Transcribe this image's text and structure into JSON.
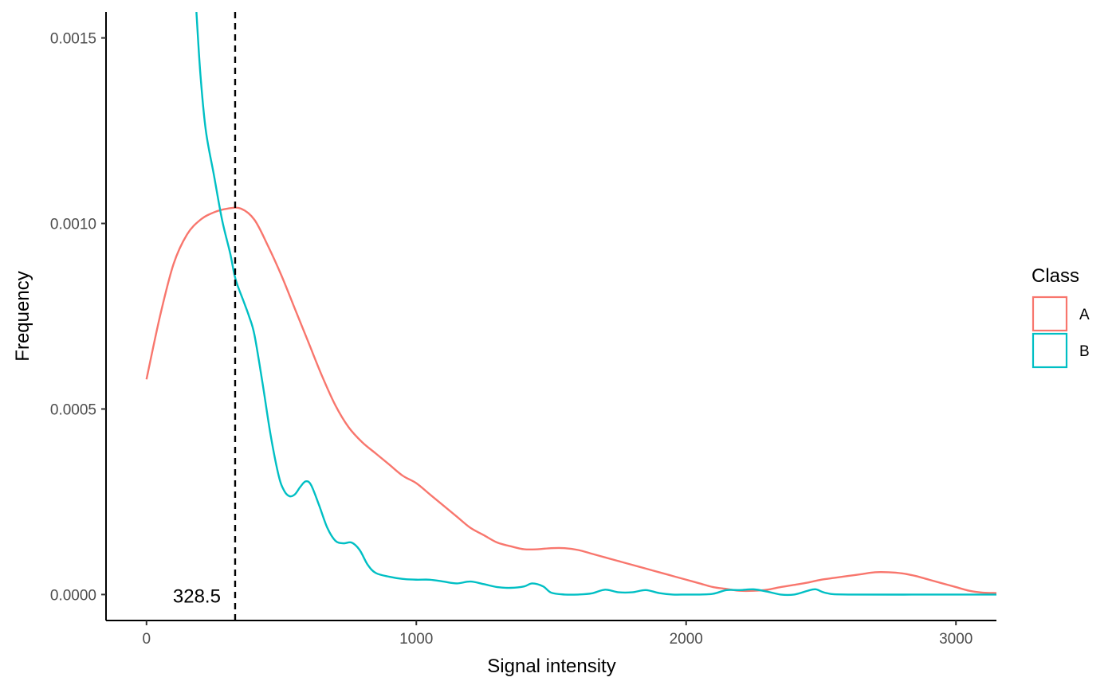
{
  "chart_data": {
    "type": "line",
    "title": "",
    "xlabel": "Signal intensity",
    "ylabel": "Frequency",
    "xlim": [
      -150,
      3150
    ],
    "ylim": [
      -7e-05,
      0.00157
    ],
    "x_ticks": [
      0,
      1000,
      2000,
      3000
    ],
    "x_tick_labels": [
      "0",
      "1000",
      "2000",
      "3000"
    ],
    "y_ticks": [
      0,
      0.0005,
      0.001,
      0.0015
    ],
    "y_tick_labels": [
      "0.0000",
      "0.0005",
      "0.0010",
      "0.0015"
    ],
    "grid": false,
    "legend": {
      "title": "Class",
      "placement": "right"
    },
    "vline": {
      "x": 328.5,
      "label": "328.5",
      "style": "dashed",
      "color": "#000000"
    },
    "series": [
      {
        "name": "A",
        "color": "#F8766D",
        "points": [
          [
            0,
            0.00058
          ],
          [
            50,
            0.00075
          ],
          [
            100,
            0.00089
          ],
          [
            150,
            0.00097
          ],
          [
            200,
            0.00101
          ],
          [
            250,
            0.00103
          ],
          [
            300,
            0.00104
          ],
          [
            350,
            0.00104
          ],
          [
            400,
            0.00101
          ],
          [
            450,
            0.00094
          ],
          [
            500,
            0.00086
          ],
          [
            550,
            0.00077
          ],
          [
            600,
            0.00068
          ],
          [
            650,
            0.00059
          ],
          [
            700,
            0.00051
          ],
          [
            750,
            0.00045
          ],
          [
            800,
            0.00041
          ],
          [
            850,
            0.00038
          ],
          [
            900,
            0.00035
          ],
          [
            950,
            0.00032
          ],
          [
            1000,
            0.0003
          ],
          [
            1050,
            0.00027
          ],
          [
            1100,
            0.00024
          ],
          [
            1150,
            0.00021
          ],
          [
            1200,
            0.00018
          ],
          [
            1250,
            0.00016
          ],
          [
            1300,
            0.00014
          ],
          [
            1350,
            0.00013
          ],
          [
            1400,
            0.000122
          ],
          [
            1450,
            0.000122
          ],
          [
            1500,
            0.000125
          ],
          [
            1550,
            0.000125
          ],
          [
            1600,
            0.00012
          ],
          [
            1650,
            0.00011
          ],
          [
            1700,
            0.0001
          ],
          [
            1750,
            9e-05
          ],
          [
            1800,
            8e-05
          ],
          [
            1850,
            7e-05
          ],
          [
            1900,
            6e-05
          ],
          [
            1950,
            5e-05
          ],
          [
            2000,
            4e-05
          ],
          [
            2050,
            3e-05
          ],
          [
            2100,
            2e-05
          ],
          [
            2150,
            1.5e-05
          ],
          [
            2200,
            1e-05
          ],
          [
            2250,
            1e-05
          ],
          [
            2300,
            1.3e-05
          ],
          [
            2350,
            2e-05
          ],
          [
            2400,
            2.6e-05
          ],
          [
            2450,
            3.2e-05
          ],
          [
            2500,
            4e-05
          ],
          [
            2550,
            4.5e-05
          ],
          [
            2600,
            5e-05
          ],
          [
            2650,
            5.5e-05
          ],
          [
            2700,
            6e-05
          ],
          [
            2750,
            6e-05
          ],
          [
            2800,
            5.7e-05
          ],
          [
            2850,
            5e-05
          ],
          [
            2900,
            4e-05
          ],
          [
            2950,
            3e-05
          ],
          [
            3000,
            2e-05
          ],
          [
            3050,
            1e-05
          ],
          [
            3100,
            5e-06
          ],
          [
            3150,
            4e-06
          ]
        ]
      },
      {
        "name": "B",
        "color": "#00BFC4",
        "points": [
          [
            185,
            0.00157
          ],
          [
            200,
            0.0014
          ],
          [
            220,
            0.00125
          ],
          [
            250,
            0.00113
          ],
          [
            280,
            0.00101
          ],
          [
            310,
            0.00092
          ],
          [
            330,
            0.00085
          ],
          [
            360,
            0.00079
          ],
          [
            380,
            0.00075
          ],
          [
            400,
            0.0007
          ],
          [
            430,
            0.00057
          ],
          [
            460,
            0.00043
          ],
          [
            490,
            0.00032
          ],
          [
            510,
            0.00028
          ],
          [
            530,
            0.000265
          ],
          [
            550,
            0.00027
          ],
          [
            570,
            0.00029
          ],
          [
            590,
            0.000305
          ],
          [
            610,
            0.000295
          ],
          [
            640,
            0.00024
          ],
          [
            670,
            0.00018
          ],
          [
            700,
            0.000145
          ],
          [
            730,
            0.000138
          ],
          [
            760,
            0.00014
          ],
          [
            790,
            0.00012
          ],
          [
            820,
            8e-05
          ],
          [
            850,
            5.8e-05
          ],
          [
            900,
            4.8e-05
          ],
          [
            950,
            4.2e-05
          ],
          [
            1000,
            4e-05
          ],
          [
            1050,
            4e-05
          ],
          [
            1100,
            3.5e-05
          ],
          [
            1150,
            3e-05
          ],
          [
            1200,
            3.5e-05
          ],
          [
            1250,
            2.8e-05
          ],
          [
            1300,
            2e-05
          ],
          [
            1350,
            1.8e-05
          ],
          [
            1400,
            2.2e-05
          ],
          [
            1430,
            3e-05
          ],
          [
            1470,
            2.2e-05
          ],
          [
            1500,
            5e-06
          ],
          [
            1550,
            0.0
          ],
          [
            1600,
            0.0
          ],
          [
            1650,
            3e-06
          ],
          [
            1700,
            1.3e-05
          ],
          [
            1750,
            6e-06
          ],
          [
            1800,
            6e-06
          ],
          [
            1850,
            1.2e-05
          ],
          [
            1900,
            4e-06
          ],
          [
            1950,
            0.0
          ],
          [
            2000,
            0.0
          ],
          [
            2050,
            0.0
          ],
          [
            2100,
            2e-06
          ],
          [
            2150,
            1.2e-05
          ],
          [
            2200,
            1.2e-05
          ],
          [
            2250,
            1.4e-05
          ],
          [
            2300,
            8e-06
          ],
          [
            2350,
            0.0
          ],
          [
            2400,
            0.0
          ],
          [
            2450,
            1e-05
          ],
          [
            2480,
            1.4e-05
          ],
          [
            2520,
            4e-06
          ],
          [
            2600,
            0.0
          ],
          [
            3000,
            0.0
          ],
          [
            3150,
            0.0
          ]
        ]
      }
    ]
  }
}
